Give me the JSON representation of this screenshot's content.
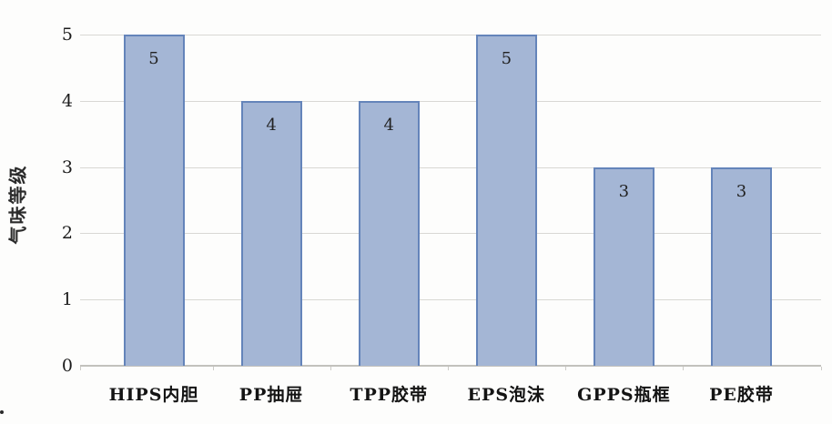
{
  "chart_data": {
    "type": "bar",
    "title": "",
    "categories": [
      "HIPS内胆",
      "PP抽屉",
      "TPP胶带",
      "EPS泡沫",
      "GPPS瓶框",
      "PE胶带"
    ],
    "values": [
      5,
      4,
      4,
      5,
      3,
      3
    ],
    "data_labels": [
      "5",
      "4",
      "4",
      "5",
      "3",
      "3"
    ],
    "xlabel": "",
    "ylabel": "气味等级",
    "ylim": [
      0,
      5
    ],
    "yticks": [
      0,
      1,
      2,
      3,
      4,
      5
    ],
    "grid": "horizontal",
    "legend": "none",
    "colors": {
      "bar_fill": "#a4b6d5",
      "bar_border": "#6484ba",
      "gridline": "#d9d8d4",
      "axis_line": "#c2c1bd",
      "text": "#1c1c1c",
      "background": "#fdfdfc"
    }
  }
}
